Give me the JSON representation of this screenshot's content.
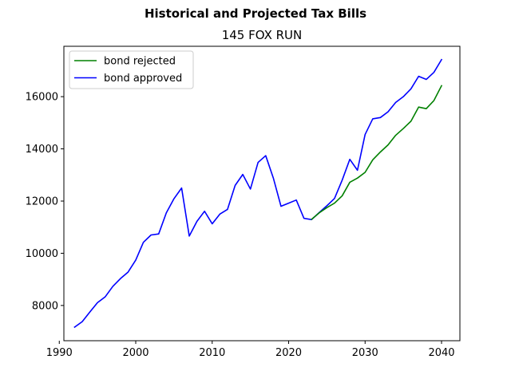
{
  "chart_data": {
    "type": "line",
    "suptitle": "Historical and Projected Tax Bills",
    "title": "145 FOX RUN",
    "xlabel": "",
    "ylabel": "",
    "xlim": [
      1990.6,
      2042.4
    ],
    "ylim": [
      6650,
      17930
    ],
    "x_ticks": [
      1990,
      2000,
      2010,
      2020,
      2030,
      2040
    ],
    "y_ticks": [
      8000,
      10000,
      12000,
      14000,
      16000
    ],
    "x_tick_labels": [
      "1990",
      "2000",
      "2010",
      "2020",
      "2030",
      "2040"
    ],
    "y_tick_labels": [
      "8000",
      "10000",
      "12000",
      "14000",
      "16000"
    ],
    "grid": false,
    "legend_position": "top-left",
    "series": [
      {
        "name": "bond rejected",
        "color": "#008000",
        "x": [
          2023,
          2024,
          2025,
          2026,
          2027,
          2028,
          2029,
          2030,
          2031,
          2032,
          2033,
          2034,
          2035,
          2036,
          2037,
          2038,
          2039,
          2040
        ],
        "y": [
          11300,
          11550,
          11750,
          11920,
          12200,
          12720,
          12880,
          13100,
          13580,
          13880,
          14150,
          14520,
          14780,
          15060,
          15600,
          15540,
          15850,
          16420
        ]
      },
      {
        "name": "bond approved",
        "color": "#0000ff",
        "x": [
          1992,
          1993,
          1994,
          1995,
          1996,
          1997,
          1998,
          1999,
          2000,
          2001,
          2002,
          2003,
          2004,
          2005,
          2006,
          2007,
          2008,
          2009,
          2010,
          2011,
          2012,
          2013,
          2014,
          2015,
          2016,
          2017,
          2018,
          2019,
          2020,
          2021,
          2022,
          2023,
          2024,
          2025,
          2026,
          2027,
          2028,
          2029,
          2030,
          2031,
          2032,
          2033,
          2034,
          2035,
          2036,
          2037,
          2038,
          2039,
          2040
        ],
        "y": [
          7170,
          7380,
          7750,
          8110,
          8330,
          8730,
          9030,
          9280,
          9740,
          10420,
          10700,
          10740,
          11550,
          12090,
          12500,
          10660,
          11220,
          11610,
          11130,
          11500,
          11680,
          12600,
          13020,
          12460,
          13480,
          13740,
          12880,
          11800,
          11920,
          12040,
          11340,
          11290,
          11560,
          11820,
          12100,
          12800,
          13600,
          13180,
          14550,
          15150,
          15200,
          15420,
          15780,
          16000,
          16300,
          16780,
          16660,
          16930,
          17420
        ]
      }
    ]
  }
}
